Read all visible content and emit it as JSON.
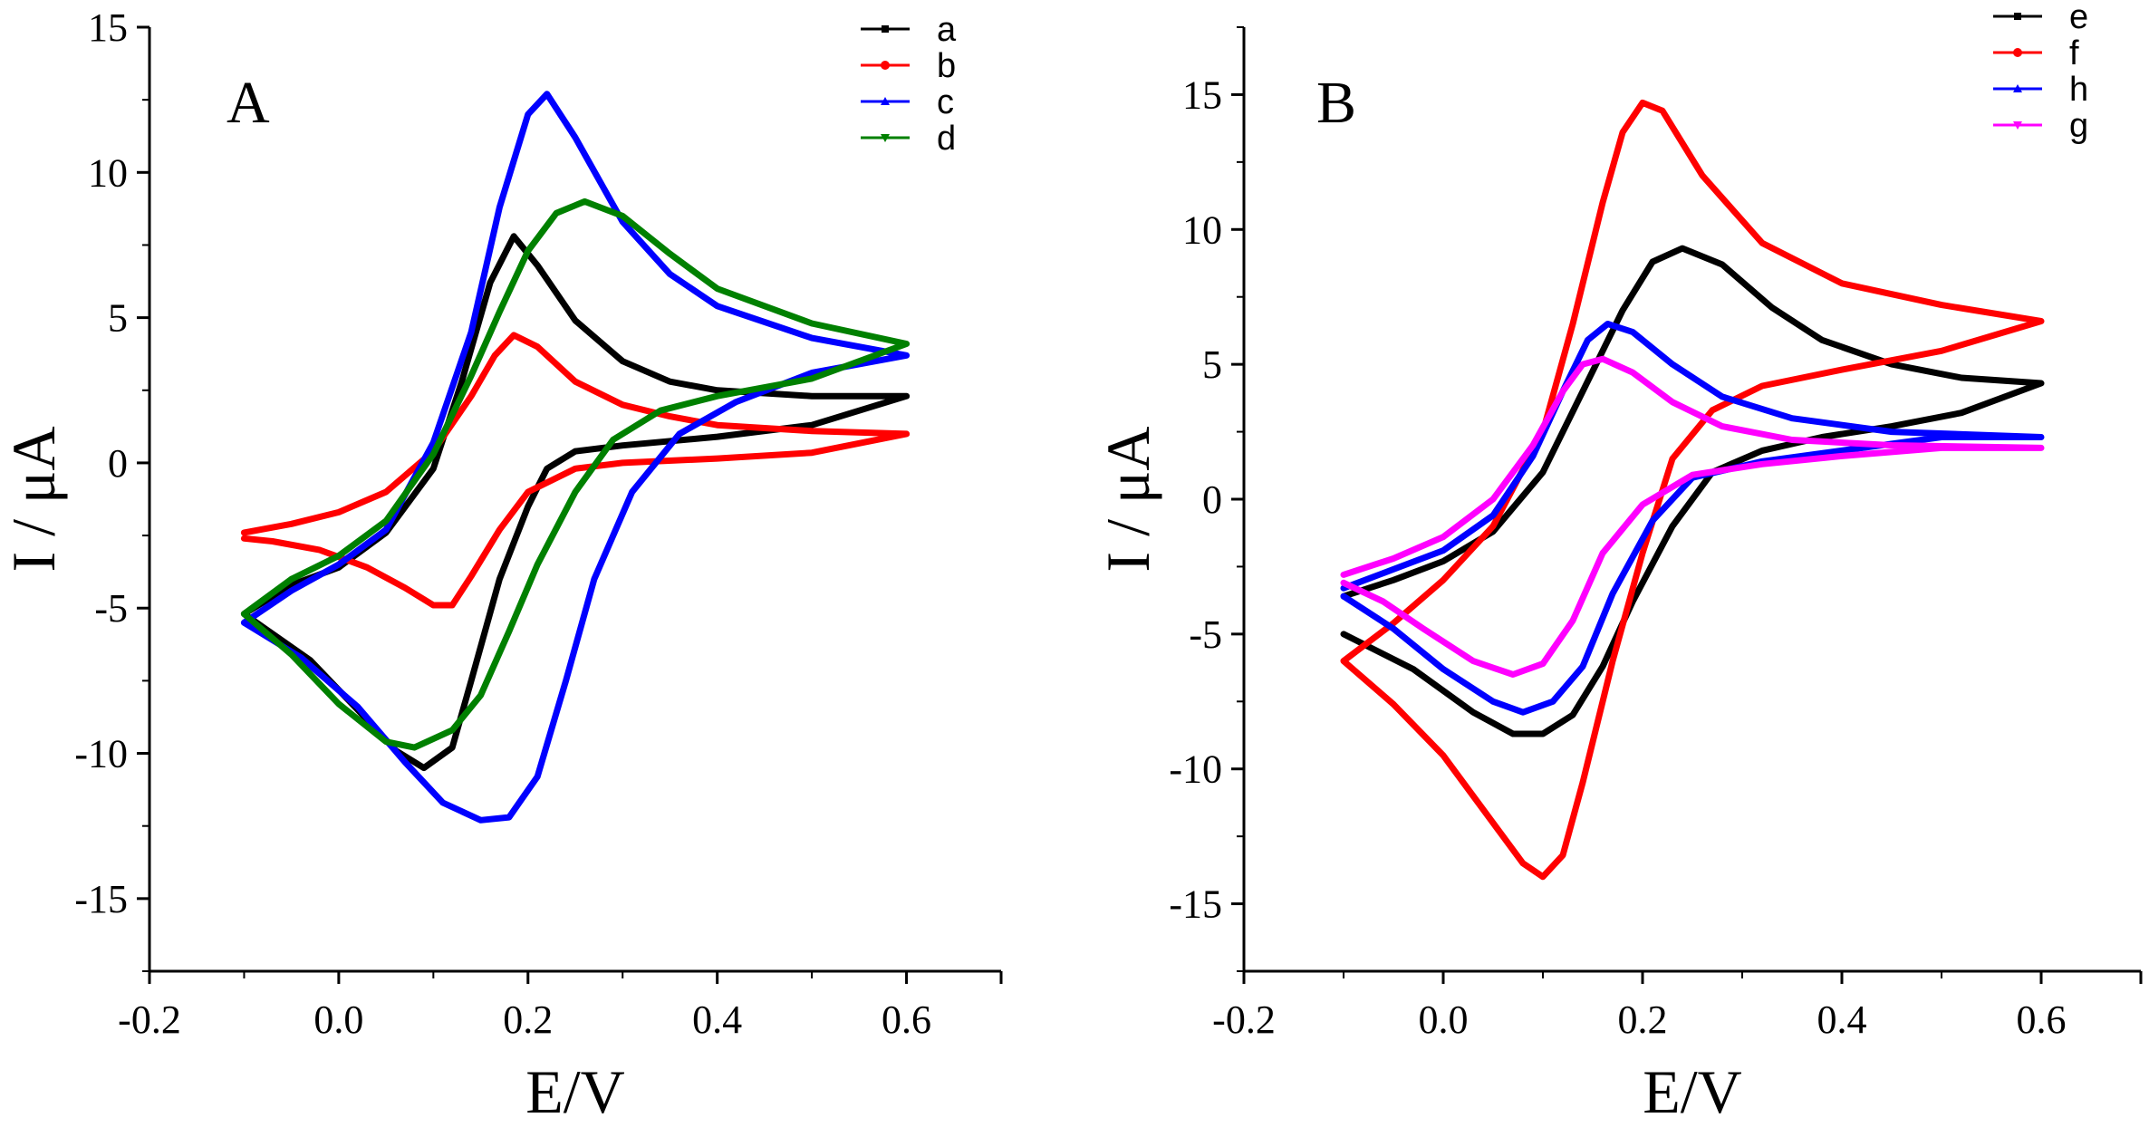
{
  "chart_data": [
    {
      "type": "line",
      "panel_label": "A",
      "xlabel": "E/V",
      "ylabel": "I / μA",
      "xlim": [
        -0.2,
        0.7
      ],
      "ylim": [
        -17.5,
        15
      ],
      "x_ticks": [
        -0.2,
        0.0,
        0.2,
        0.4,
        0.6
      ],
      "x_tick_labels": [
        "-0.2",
        "0.0",
        "0.2",
        "0.4",
        "0.6"
      ],
      "y_ticks": [
        -15,
        -10,
        -5,
        0,
        5,
        10,
        15
      ],
      "y_tick_labels": [
        "-15",
        "-10",
        "-5",
        "0",
        "5",
        "10",
        "15"
      ],
      "legend_position": "top-right",
      "series": [
        {
          "name": "a",
          "color": "#000000",
          "marker": "square",
          "forward": [
            [
              -0.1,
              -5.2
            ],
            [
              -0.05,
              -4.2
            ],
            [
              0.0,
              -3.6
            ],
            [
              0.05,
              -2.4
            ],
            [
              0.1,
              -0.2
            ],
            [
              0.13,
              2.8
            ],
            [
              0.16,
              6.2
            ],
            [
              0.185,
              7.8
            ],
            [
              0.21,
              6.8
            ],
            [
              0.25,
              4.9
            ],
            [
              0.3,
              3.5
            ],
            [
              0.35,
              2.8
            ],
            [
              0.4,
              2.5
            ],
            [
              0.5,
              2.3
            ],
            [
              0.6,
              2.3
            ]
          ],
          "reverse": [
            [
              0.6,
              2.4
            ],
            [
              0.5,
              1.3
            ],
            [
              0.4,
              0.9
            ],
            [
              0.3,
              0.6
            ],
            [
              0.25,
              0.4
            ],
            [
              0.22,
              -0.2
            ],
            [
              0.2,
              -1.5
            ],
            [
              0.17,
              -4.0
            ],
            [
              0.14,
              -7.5
            ],
            [
              0.12,
              -9.8
            ],
            [
              0.09,
              -10.5
            ],
            [
              0.06,
              -9.9
            ],
            [
              0.02,
              -8.5
            ],
            [
              -0.03,
              -6.8
            ],
            [
              -0.1,
              -5.2
            ]
          ]
        },
        {
          "name": "b",
          "color": "#ff0000",
          "marker": "circle",
          "forward": [
            [
              -0.1,
              -2.4
            ],
            [
              -0.05,
              -2.1
            ],
            [
              0.0,
              -1.7
            ],
            [
              0.05,
              -1.0
            ],
            [
              0.1,
              0.4
            ],
            [
              0.14,
              2.3
            ],
            [
              0.165,
              3.7
            ],
            [
              0.185,
              4.4
            ],
            [
              0.21,
              4.0
            ],
            [
              0.25,
              2.8
            ],
            [
              0.3,
              2.0
            ],
            [
              0.35,
              1.6
            ],
            [
              0.4,
              1.3
            ],
            [
              0.5,
              1.1
            ],
            [
              0.6,
              1.0
            ]
          ],
          "reverse": [
            [
              0.6,
              0.7
            ],
            [
              0.5,
              0.35
            ],
            [
              0.4,
              0.15
            ],
            [
              0.3,
              0.0
            ],
            [
              0.25,
              -0.2
            ],
            [
              0.2,
              -1.0
            ],
            [
              0.17,
              -2.3
            ],
            [
              0.14,
              -3.9
            ],
            [
              0.12,
              -4.9
            ],
            [
              0.1,
              -4.9
            ],
            [
              0.07,
              -4.3
            ],
            [
              0.03,
              -3.6
            ],
            [
              -0.02,
              -3.0
            ],
            [
              -0.07,
              -2.7
            ],
            [
              -0.1,
              -2.6
            ]
          ]
        },
        {
          "name": "c",
          "color": "#0000ff",
          "marker": "triangle-up",
          "forward": [
            [
              -0.1,
              -5.5
            ],
            [
              -0.05,
              -4.4
            ],
            [
              0.0,
              -3.5
            ],
            [
              0.05,
              -2.3
            ],
            [
              0.1,
              0.7
            ],
            [
              0.14,
              4.5
            ],
            [
              0.17,
              8.8
            ],
            [
              0.2,
              12.0
            ],
            [
              0.22,
              12.7
            ],
            [
              0.25,
              11.2
            ],
            [
              0.3,
              8.3
            ],
            [
              0.35,
              6.5
            ],
            [
              0.4,
              5.4
            ],
            [
              0.5,
              4.3
            ],
            [
              0.6,
              3.7
            ]
          ],
          "reverse": [
            [
              0.6,
              4.5
            ],
            [
              0.5,
              3.1
            ],
            [
              0.42,
              2.1
            ],
            [
              0.36,
              1.0
            ],
            [
              0.31,
              -1.0
            ],
            [
              0.27,
              -4.0
            ],
            [
              0.24,
              -7.5
            ],
            [
              0.21,
              -10.8
            ],
            [
              0.18,
              -12.2
            ],
            [
              0.15,
              -12.3
            ],
            [
              0.11,
              -11.7
            ],
            [
              0.07,
              -10.3
            ],
            [
              0.02,
              -8.4
            ],
            [
              -0.04,
              -6.7
            ],
            [
              -0.1,
              -5.5
            ]
          ]
        },
        {
          "name": "d",
          "color": "#008000",
          "marker": "triangle-down",
          "forward": [
            [
              -0.1,
              -5.2
            ],
            [
              -0.05,
              -4.0
            ],
            [
              0.0,
              -3.2
            ],
            [
              0.05,
              -2.0
            ],
            [
              0.1,
              0.3
            ],
            [
              0.14,
              3.0
            ],
            [
              0.17,
              5.2
            ],
            [
              0.2,
              7.3
            ],
            [
              0.23,
              8.6
            ],
            [
              0.26,
              9.0
            ],
            [
              0.3,
              8.5
            ],
            [
              0.35,
              7.2
            ],
            [
              0.4,
              6.0
            ],
            [
              0.5,
              4.8
            ],
            [
              0.6,
              4.1
            ]
          ],
          "reverse": [
            [
              0.6,
              4.0
            ],
            [
              0.5,
              2.9
            ],
            [
              0.4,
              2.3
            ],
            [
              0.34,
              1.8
            ],
            [
              0.29,
              0.8
            ],
            [
              0.25,
              -1.0
            ],
            [
              0.21,
              -3.5
            ],
            [
              0.18,
              -5.8
            ],
            [
              0.15,
              -8.0
            ],
            [
              0.12,
              -9.2
            ],
            [
              0.08,
              -9.8
            ],
            [
              0.05,
              -9.6
            ],
            [
              0.0,
              -8.3
            ],
            [
              -0.05,
              -6.6
            ],
            [
              -0.1,
              -5.2
            ]
          ]
        }
      ]
    },
    {
      "type": "line",
      "panel_label": "B",
      "xlabel": "E/V",
      "ylabel": "I / μA",
      "xlim": [
        -0.2,
        0.7
      ],
      "ylim": [
        -17.5,
        17.5
      ],
      "x_ticks": [
        -0.2,
        0.0,
        0.2,
        0.4,
        0.6
      ],
      "x_tick_labels": [
        "-0.2",
        "0.0",
        "0.2",
        "0.4",
        "0.6"
      ],
      "y_ticks": [
        -15,
        -10,
        -5,
        0,
        5,
        10,
        15
      ],
      "y_tick_labels": [
        "-15",
        "-10",
        "-5",
        "0",
        "5",
        "10",
        "15"
      ],
      "legend_position": "top-right",
      "series": [
        {
          "name": "e",
          "color": "#000000",
          "marker": "square",
          "forward": [
            [
              -0.1,
              -3.6
            ],
            [
              -0.05,
              -3.0
            ],
            [
              0.0,
              -2.3
            ],
            [
              0.05,
              -1.2
            ],
            [
              0.1,
              1.0
            ],
            [
              0.14,
              4.0
            ],
            [
              0.18,
              7.0
            ],
            [
              0.21,
              8.8
            ],
            [
              0.24,
              9.3
            ],
            [
              0.28,
              8.7
            ],
            [
              0.33,
              7.1
            ],
            [
              0.38,
              5.9
            ],
            [
              0.45,
              5.0
            ],
            [
              0.52,
              4.5
            ],
            [
              0.6,
              4.3
            ]
          ],
          "reverse": [
            [
              0.6,
              4.3
            ],
            [
              0.52,
              3.2
            ],
            [
              0.45,
              2.7
            ],
            [
              0.38,
              2.3
            ],
            [
              0.32,
              1.8
            ],
            [
              0.27,
              1.0
            ],
            [
              0.23,
              -1.0
            ],
            [
              0.19,
              -3.8
            ],
            [
              0.16,
              -6.2
            ],
            [
              0.13,
              -8.0
            ],
            [
              0.1,
              -8.7
            ],
            [
              0.07,
              -8.7
            ],
            [
              0.03,
              -7.9
            ],
            [
              -0.03,
              -6.3
            ],
            [
              -0.1,
              -5.0
            ]
          ]
        },
        {
          "name": "f",
          "color": "#ff0000",
          "marker": "circle",
          "forward": [
            [
              -0.1,
              -6.0
            ],
            [
              -0.05,
              -4.6
            ],
            [
              0.0,
              -3.0
            ],
            [
              0.05,
              -1.0
            ],
            [
              0.1,
              2.5
            ],
            [
              0.13,
              6.5
            ],
            [
              0.16,
              11.0
            ],
            [
              0.18,
              13.6
            ],
            [
              0.2,
              14.7
            ],
            [
              0.22,
              14.4
            ],
            [
              0.26,
              12.0
            ],
            [
              0.32,
              9.5
            ],
            [
              0.4,
              8.0
            ],
            [
              0.5,
              7.2
            ],
            [
              0.6,
              6.6
            ]
          ],
          "reverse": [
            [
              0.6,
              6.6
            ],
            [
              0.5,
              5.5
            ],
            [
              0.4,
              4.8
            ],
            [
              0.32,
              4.2
            ],
            [
              0.27,
              3.3
            ],
            [
              0.23,
              1.5
            ],
            [
              0.2,
              -2.0
            ],
            [
              0.17,
              -6.0
            ],
            [
              0.14,
              -10.5
            ],
            [
              0.12,
              -13.2
            ],
            [
              0.1,
              -14.0
            ],
            [
              0.08,
              -13.5
            ],
            [
              0.05,
              -12.0
            ],
            [
              0.0,
              -9.5
            ],
            [
              -0.05,
              -7.6
            ],
            [
              -0.1,
              -6.0
            ]
          ]
        },
        {
          "name": "h",
          "color": "#0000ff",
          "marker": "triangle-up",
          "forward": [
            [
              -0.1,
              -3.3
            ],
            [
              -0.05,
              -2.6
            ],
            [
              0.0,
              -1.9
            ],
            [
              0.05,
              -0.6
            ],
            [
              0.09,
              1.6
            ],
            [
              0.12,
              4.0
            ],
            [
              0.145,
              5.9
            ],
            [
              0.165,
              6.5
            ],
            [
              0.19,
              6.2
            ],
            [
              0.23,
              5.0
            ],
            [
              0.28,
              3.8
            ],
            [
              0.35,
              3.0
            ],
            [
              0.45,
              2.5
            ],
            [
              0.6,
              2.3
            ]
          ],
          "reverse": [
            [
              0.6,
              3.1
            ],
            [
              0.5,
              2.3
            ],
            [
              0.4,
              1.8
            ],
            [
              0.32,
              1.4
            ],
            [
              0.25,
              0.8
            ],
            [
              0.21,
              -0.8
            ],
            [
              0.17,
              -3.5
            ],
            [
              0.14,
              -6.2
            ],
            [
              0.11,
              -7.5
            ],
            [
              0.08,
              -7.9
            ],
            [
              0.05,
              -7.5
            ],
            [
              0.0,
              -6.3
            ],
            [
              -0.05,
              -4.8
            ],
            [
              -0.1,
              -3.6
            ]
          ]
        },
        {
          "name": "g",
          "color": "#ff00ff",
          "marker": "triangle-down",
          "forward": [
            [
              -0.1,
              -2.8
            ],
            [
              -0.05,
              -2.2
            ],
            [
              0.0,
              -1.4
            ],
            [
              0.05,
              0.0
            ],
            [
              0.09,
              2.0
            ],
            [
              0.12,
              4.0
            ],
            [
              0.14,
              5.0
            ],
            [
              0.16,
              5.2
            ],
            [
              0.19,
              4.7
            ],
            [
              0.23,
              3.6
            ],
            [
              0.28,
              2.7
            ],
            [
              0.35,
              2.2
            ],
            [
              0.45,
              2.0
            ],
            [
              0.6,
              1.9
            ]
          ],
          "reverse": [
            [
              0.6,
              2.6
            ],
            [
              0.5,
              1.9
            ],
            [
              0.4,
              1.6
            ],
            [
              0.32,
              1.3
            ],
            [
              0.25,
              0.9
            ],
            [
              0.2,
              -0.2
            ],
            [
              0.16,
              -2.0
            ],
            [
              0.13,
              -4.5
            ],
            [
              0.1,
              -6.1
            ],
            [
              0.07,
              -6.5
            ],
            [
              0.03,
              -6.0
            ],
            [
              -0.02,
              -4.8
            ],
            [
              -0.06,
              -3.8
            ],
            [
              -0.1,
              -3.1
            ]
          ]
        }
      ]
    }
  ]
}
